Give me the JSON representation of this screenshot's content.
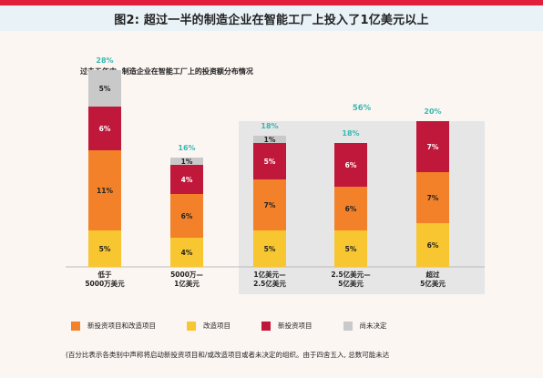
{
  "title": "图2: 超过一半的制造企业在智能工厂上投入了1亿美元以上",
  "subtitle": "过去五年中, 制造企业在智能工厂上的投资额分布情况",
  "group_label": "56%",
  "colors": {
    "orange": "#f2812a",
    "yellow": "#f7c630",
    "crimson": "#c0183a",
    "gray": "#c9c9c9",
    "teal": "#3ab7b0",
    "highlight_bg": "#e6e6e6"
  },
  "legend": [
    {
      "label": "新投资项目和改造项目",
      "color": "#f2812a"
    },
    {
      "label": "改造项目",
      "color": "#f7c630"
    },
    {
      "label": "新投资项目",
      "color": "#c0183a"
    },
    {
      "label": "尚未决定",
      "color": "#c9c9c9"
    }
  ],
  "footnote": "(百分比表示各类别中声称将启动新投资项目和/或改造项目或者未决定的组织。由于四舍五入, 总数可能未达",
  "chart_data": {
    "type": "bar",
    "stacked": true,
    "categories": [
      [
        "低于",
        "5000万美元"
      ],
      [
        "5000万—",
        "1亿美元"
      ],
      [
        "1亿美元—",
        "2.5亿美元"
      ],
      [
        "2.5亿美元—",
        "5亿美元"
      ],
      [
        "超过",
        "5亿美元"
      ]
    ],
    "totals": [
      "28%",
      "16%",
      "18%",
      "18%",
      "20%"
    ],
    "series": [
      {
        "name": "改造项目",
        "color": "#f7c630",
        "values": [
          5,
          4,
          5,
          5,
          6
        ]
      },
      {
        "name": "新投资项目和改造项目",
        "color": "#f2812a",
        "values": [
          11,
          6,
          7,
          6,
          7
        ]
      },
      {
        "name": "新投资项目",
        "color": "#c0183a",
        "values": [
          6,
          4,
          5,
          6,
          7
        ]
      },
      {
        "name": "尚未决定",
        "color": "#c9c9c9",
        "values": [
          5,
          1,
          1,
          0,
          0
        ]
      }
    ],
    "value_labels": [
      [
        "5%",
        "11%",
        "6%",
        "5%"
      ],
      [
        "4%",
        "6%",
        "4%",
        "1%"
      ],
      [
        "5%",
        "7%",
        "5%",
        "1%"
      ],
      [
        "5%",
        "6%",
        "6%",
        ""
      ],
      [
        "6%",
        "7%",
        "7%",
        ""
      ]
    ]
  }
}
